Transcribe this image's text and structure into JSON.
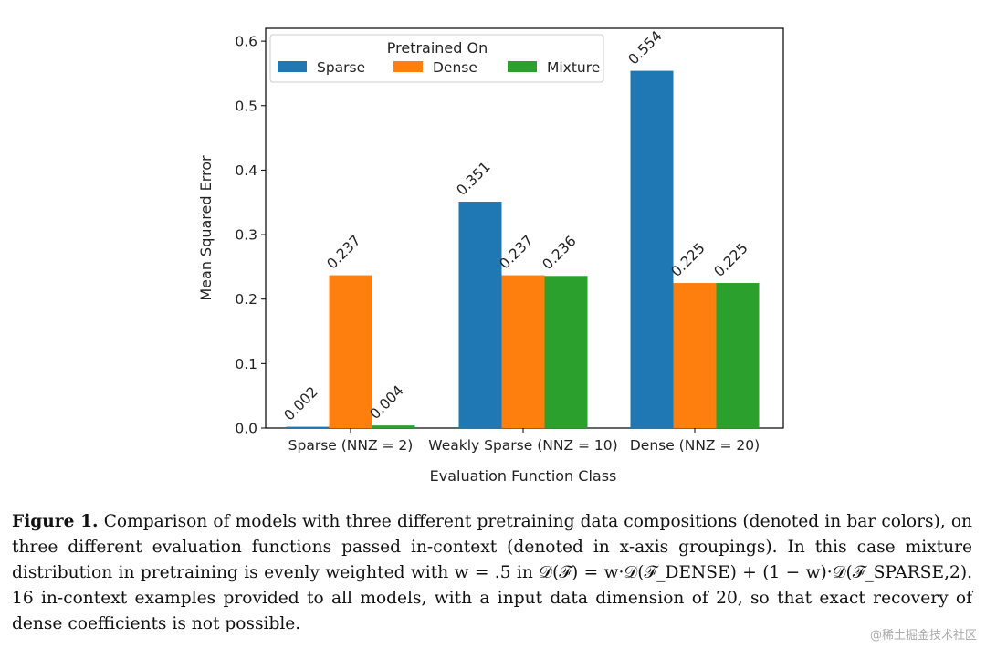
{
  "chart_data": {
    "type": "bar",
    "categories": [
      "Sparse (NNZ = 2)",
      "Weakly Sparse (NNZ = 10)",
      "Dense (NNZ = 20)"
    ],
    "series": [
      {
        "name": "Sparse",
        "color": "#1f77b4",
        "values": [
          0.002,
          0.351,
          0.554
        ],
        "labels": [
          "0.002",
          "0.351",
          "0.554"
        ]
      },
      {
        "name": "Dense",
        "color": "#ff7f0e",
        "values": [
          0.237,
          0.237,
          0.225
        ],
        "labels": [
          "0.237",
          "0.237",
          "0.225"
        ]
      },
      {
        "name": "Mixture",
        "color": "#2ca02c",
        "values": [
          0.004,
          0.236,
          0.225
        ],
        "labels": [
          "0.004",
          "0.236",
          "0.225"
        ]
      }
    ],
    "legend_title": "Pretrained On",
    "legend_position": "top-left",
    "xlabel": "Evaluation Function Class",
    "ylabel": "Mean Squared Error",
    "ylim": [
      0,
      0.62
    ],
    "yticks": [
      "0.0",
      "0.1",
      "0.2",
      "0.3",
      "0.4",
      "0.5",
      "0.6"
    ],
    "grid": false
  },
  "caption": {
    "label": "Figure 1.",
    "text": "Comparison of models with three different pretraining data compositions (denoted in bar colors), on three different evaluation functions passed in-context (denoted in x-axis groupings). In this case mixture distribution in pretraining is evenly weighted with w = .5 in 𝒟(ℱ) = w·𝒟(ℱ_DENSE) + (1 − w)·𝒟(ℱ_SPARSE,2). 16 in-context examples provided to all models, with a input data dimension of 20, so that exact recovery of dense coefficients is not possible."
  },
  "watermark": "@稀土掘金技术社区"
}
